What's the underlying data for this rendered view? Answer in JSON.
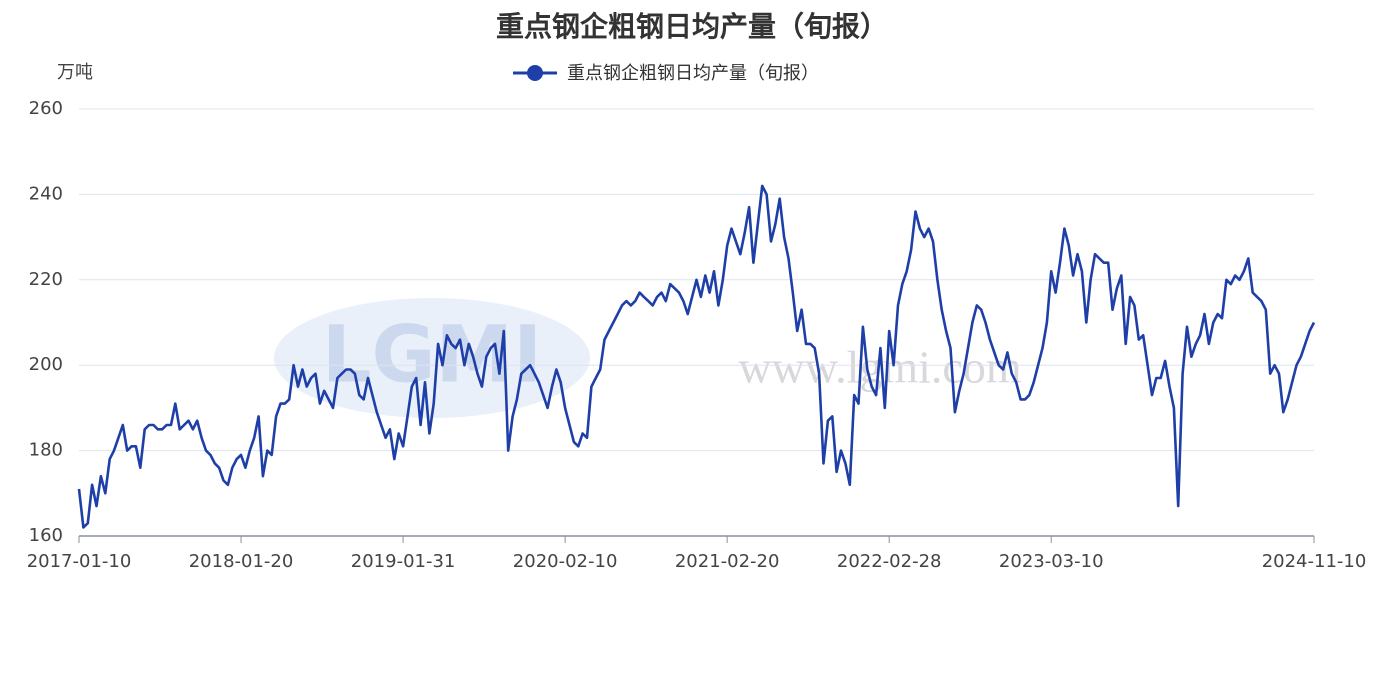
{
  "chart_data": {
    "type": "line",
    "title": "重点钢企粗钢日均产量（旬报）",
    "y_unit": "万吨",
    "watermark": "www.lgmi.com",
    "logo": "LGMI",
    "ylim": [
      160,
      260
    ],
    "yticks": [
      160,
      180,
      200,
      220,
      240,
      260
    ],
    "grid": true,
    "legend": "top",
    "categories": [
      "2017-01-10",
      null,
      null,
      null,
      null,
      null,
      null,
      null,
      null,
      null,
      null,
      null,
      null,
      null,
      null,
      null,
      null,
      null,
      null,
      null,
      null,
      null,
      null,
      null,
      null,
      null,
      null,
      null,
      null,
      null,
      null,
      null,
      null,
      null,
      null,
      null,
      null,
      "2018-01-20",
      null,
      null,
      null,
      null,
      null,
      null,
      null,
      null,
      null,
      null,
      null,
      null,
      null,
      null,
      null,
      null,
      null,
      null,
      null,
      null,
      null,
      null,
      null,
      null,
      null,
      null,
      null,
      null,
      null,
      null,
      null,
      null,
      null,
      null,
      null,
      null,
      "2019-01-31",
      null,
      null,
      null,
      null,
      null,
      null,
      null,
      null,
      null,
      null,
      null,
      null,
      null,
      null,
      null,
      null,
      null,
      null,
      null,
      null,
      null,
      null,
      null,
      null,
      null,
      null,
      null,
      null,
      null,
      null,
      null,
      null,
      null,
      null,
      null,
      null,
      "2020-02-10",
      null,
      null,
      null,
      null,
      null,
      null,
      null,
      null,
      null,
      null,
      null,
      null,
      null,
      null,
      null,
      null,
      null,
      null,
      null,
      null,
      null,
      null,
      null,
      null,
      null,
      null,
      null,
      null,
      null,
      null,
      null,
      null,
      null,
      null,
      null,
      null,
      "2021-02-20",
      null,
      null,
      null,
      null,
      null,
      null,
      null,
      null,
      null,
      null,
      null,
      null,
      null,
      null,
      null,
      null,
      null,
      null,
      null,
      null,
      null,
      null,
      null,
      null,
      null,
      null,
      null,
      null,
      null,
      null,
      null,
      null,
      null,
      null,
      null,
      null,
      "2022-02-28",
      null,
      null,
      null,
      null,
      null,
      null,
      null,
      null,
      null,
      null,
      null,
      null,
      null,
      null,
      null,
      null,
      null,
      null,
      null,
      null,
      null,
      null,
      null,
      null,
      null,
      null,
      null,
      null,
      null,
      null,
      null,
      null,
      null,
      null,
      null,
      null,
      "2023-03-10",
      null,
      null,
      null,
      null,
      null,
      null,
      null,
      null,
      null,
      null,
      null,
      null,
      null,
      null,
      null,
      null,
      null,
      null,
      null,
      null,
      null,
      null,
      null,
      null,
      null,
      null,
      null,
      null,
      null,
      null,
      null,
      null,
      null,
      null,
      null,
      null,
      null,
      null,
      null,
      null,
      null,
      null,
      null,
      null,
      null,
      null,
      null,
      null,
      null,
      null,
      null,
      null,
      null,
      null,
      null,
      null,
      null,
      null,
      null,
      "2024-11-10"
    ],
    "series": [
      {
        "name": "重点钢企粗钢日均产量（旬报）",
        "color": "#1f3fa8",
        "values": [
          171,
          162,
          163,
          172,
          167,
          174,
          170,
          178,
          180,
          183,
          186,
          180,
          181,
          181,
          176,
          185,
          186,
          186,
          185,
          185,
          186,
          186,
          191,
          185,
          186,
          187,
          185,
          187,
          183,
          180,
          179,
          177,
          176,
          173,
          172,
          176,
          178,
          179,
          176,
          180,
          183,
          188,
          174,
          180,
          179,
          188,
          191,
          191,
          192,
          200,
          195,
          199,
          195,
          197,
          198,
          191,
          194,
          192,
          190,
          197,
          198,
          199,
          199,
          198,
          193,
          192,
          197,
          193,
          189,
          186,
          183,
          185,
          178,
          184,
          181,
          188,
          195,
          197,
          186,
          196,
          184,
          191,
          205,
          200,
          207,
          205,
          204,
          206,
          200,
          205,
          202,
          198,
          195,
          202,
          204,
          205,
          198,
          208,
          180,
          188,
          192,
          198,
          199,
          200,
          198,
          196,
          193,
          190,
          195,
          199,
          196,
          190,
          186,
          182,
          181,
          184,
          183,
          195,
          197,
          199,
          206,
          208,
          210,
          212,
          214,
          215,
          214,
          215,
          217,
          216,
          215,
          214,
          216,
          217,
          215,
          219,
          218,
          217,
          215,
          212,
          216,
          220,
          216,
          221,
          217,
          222,
          214,
          220,
          228,
          232,
          229,
          226,
          231,
          237,
          224,
          233,
          242,
          240,
          229,
          233,
          239,
          230,
          225,
          217,
          208,
          213,
          205,
          205,
          204,
          198,
          177,
          187,
          188,
          175,
          180,
          177,
          172,
          193,
          191,
          209,
          199,
          195,
          193,
          204,
          190,
          208,
          200,
          214,
          219,
          222,
          227,
          236,
          232,
          230,
          232,
          229,
          220,
          213,
          208,
          204,
          189,
          194,
          198,
          204,
          210,
          214,
          213,
          210,
          206,
          203,
          200,
          199,
          203,
          198,
          196,
          192,
          192,
          193,
          196,
          200,
          204,
          210,
          222,
          217,
          224,
          232,
          228,
          221,
          226,
          222,
          210,
          220,
          226,
          225,
          224,
          224,
          213,
          218,
          221,
          205,
          216,
          214,
          206,
          207,
          200,
          193,
          197,
          197,
          201,
          195,
          190,
          167,
          198,
          209,
          202,
          205,
          207,
          212,
          205,
          210,
          212,
          211,
          220,
          219,
          221,
          220,
          222,
          225,
          217,
          216,
          215,
          213,
          198,
          200,
          198,
          189,
          192,
          196,
          200,
          202,
          205,
          208,
          210
        ]
      }
    ]
  }
}
